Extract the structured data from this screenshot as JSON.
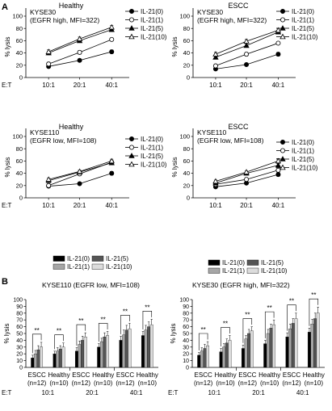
{
  "panel_labels": [
    "A",
    "B"
  ],
  "chart_data": [
    {
      "type": "line",
      "panel": "A",
      "title": "Healthy",
      "cell_line": "KYSE30",
      "subtitle": "(EGFR high, MFI=322)",
      "ylabel": "% lysis",
      "xaxis_prefix": "E:T",
      "categories": [
        "10:1",
        "20:1",
        "40:1"
      ],
      "ylim": [
        0,
        100
      ],
      "yticks": [
        0,
        20,
        40,
        60,
        80,
        100
      ],
      "series": [
        {
          "name": "IL-21(0)",
          "marker": "filled-circle",
          "values": [
            18,
            28,
            42
          ],
          "errors": [
            2,
            2,
            3
          ]
        },
        {
          "name": "IL-21(1)",
          "marker": "open-circle",
          "values": [
            22,
            41,
            62
          ],
          "errors": [
            3,
            3,
            2
          ]
        },
        {
          "name": "IL-21(5)",
          "marker": "filled-triangle",
          "values": [
            40,
            60,
            78
          ],
          "errors": [
            3,
            3,
            3
          ]
        },
        {
          "name": "IL-21(10)",
          "marker": "open-triangle",
          "values": [
            42,
            63,
            82
          ],
          "errors": [
            3,
            3,
            3
          ]
        }
      ]
    },
    {
      "type": "line",
      "panel": "A",
      "title": "ESCC",
      "cell_line": "KYSE30",
      "subtitle": "(EGFR high, MFI=322)",
      "ylabel": "% lysis",
      "xaxis_prefix": "",
      "categories": [
        "10:1",
        "20:1",
        "40:1"
      ],
      "ylim": [
        0,
        100
      ],
      "yticks": [
        0,
        20,
        40,
        60,
        80,
        100
      ],
      "series": [
        {
          "name": "IL-21(0)",
          "marker": "filled-circle",
          "values": [
            14,
            21,
            38
          ],
          "errors": [
            2,
            2,
            3
          ]
        },
        {
          "name": "IL-21(1)",
          "marker": "open-circle",
          "values": [
            19,
            38,
            56
          ],
          "errors": [
            3,
            3,
            2
          ]
        },
        {
          "name": "IL-21(5)",
          "marker": "filled-triangle",
          "values": [
            33,
            52,
            74
          ],
          "errors": [
            3,
            2,
            3
          ]
        },
        {
          "name": "IL-21(10)",
          "marker": "open-triangle",
          "values": [
            38,
            59,
            77
          ],
          "errors": [
            3,
            3,
            3
          ]
        }
      ]
    },
    {
      "type": "line",
      "panel": "A",
      "title": "Healthy",
      "cell_line": "KYSE110",
      "subtitle": "(EGFR low, MFI=108)",
      "ylabel": "% lysis",
      "xaxis_prefix": "E:T",
      "categories": [
        "10:1",
        "20:1",
        "40:1"
      ],
      "ylim": [
        0,
        100
      ],
      "yticks": [
        0,
        20,
        40,
        60,
        80,
        100
      ],
      "series": [
        {
          "name": "IL-21(0)",
          "marker": "filled-circle",
          "values": [
            19,
            23,
            40
          ],
          "errors": [
            2,
            2,
            3
          ]
        },
        {
          "name": "IL-21(1)",
          "marker": "open-circle",
          "values": [
            20,
            39,
            58
          ],
          "errors": [
            3,
            3,
            3
          ]
        },
        {
          "name": "IL-21(5)",
          "marker": "filled-triangle",
          "values": [
            28,
            42,
            57
          ],
          "errors": [
            2,
            2,
            3
          ]
        },
        {
          "name": "IL-21(10)",
          "marker": "open-triangle",
          "values": [
            30,
            43,
            60
          ],
          "errors": [
            2,
            2,
            3
          ]
        }
      ]
    },
    {
      "type": "line",
      "panel": "A",
      "title": "ESCC",
      "cell_line": "KYSE110",
      "subtitle": "(EGFR low, MFI=108)",
      "ylabel": "% lysis",
      "xaxis_prefix": "",
      "categories": [
        "10:1",
        "20:1",
        "40:1"
      ],
      "ylim": [
        0,
        100
      ],
      "yticks": [
        0,
        20,
        40,
        60,
        80,
        100
      ],
      "series": [
        {
          "name": "IL-21(0)",
          "marker": "filled-circle",
          "values": [
            18,
            24,
            38
          ],
          "errors": [
            2,
            2,
            3
          ]
        },
        {
          "name": "IL-21(1)",
          "marker": "open-circle",
          "values": [
            22,
            30,
            45
          ],
          "errors": [
            3,
            3,
            3
          ]
        },
        {
          "name": "IL-21(5)",
          "marker": "filled-triangle",
          "values": [
            24,
            40,
            53
          ],
          "errors": [
            2,
            2,
            3
          ]
        },
        {
          "name": "IL-21(10)",
          "marker": "open-triangle",
          "values": [
            27,
            42,
            60
          ],
          "errors": [
            2,
            2,
            4
          ]
        }
      ]
    },
    {
      "type": "bar",
      "panel": "B",
      "title": "KYSE110 (EGFR low, MFI=108)",
      "ylabel": "% lysis",
      "xaxis_prefix": "E:T",
      "ylim": [
        0,
        100
      ],
      "yticks": [
        0,
        10,
        20,
        30,
        40,
        50,
        60,
        70,
        80,
        90,
        100
      ],
      "et_ratios": [
        "10:1",
        "20:1",
        "40:1"
      ],
      "groups": [
        "ESCC",
        "Healthy"
      ],
      "group_n": [
        "(n=12)",
        "(n=10)"
      ],
      "significance": "**",
      "series_names": [
        "IL-21(0)",
        "IL-21(1)",
        "IL-21(5)",
        "IL-21(10)"
      ],
      "series_colors": [
        "#000000",
        "#a6a6a6",
        "#555555",
        "#dcdcdc"
      ],
      "values": [
        [
          [
            14,
            20,
            26,
            30
          ],
          [
            20,
            24,
            27,
            30
          ]
        ],
        [
          [
            24,
            34,
            40,
            45
          ],
          [
            30,
            38,
            45,
            47
          ]
        ],
        [
          [
            40,
            48,
            55,
            57
          ],
          [
            47,
            55,
            60,
            63
          ]
        ]
      ],
      "errors": [
        [
          [
            4,
            5,
            6,
            7
          ],
          [
            4,
            5,
            5,
            6
          ]
        ],
        [
          [
            5,
            5,
            6,
            6
          ],
          [
            5,
            5,
            6,
            6
          ]
        ],
        [
          [
            6,
            7,
            7,
            8
          ],
          [
            6,
            7,
            7,
            8
          ]
        ]
      ]
    },
    {
      "type": "bar",
      "panel": "B",
      "title": "KYSE30 (EGFR high, MFI=322)",
      "ylabel": "% lysis",
      "xaxis_prefix": "E:T",
      "ylim": [
        0,
        100
      ],
      "yticks": [
        0,
        10,
        20,
        30,
        40,
        50,
        60,
        70,
        80,
        90,
        100
      ],
      "et_ratios": [
        "10:1",
        "20:1",
        "40:1"
      ],
      "groups": [
        "ESCC",
        "Healthy"
      ],
      "group_n": [
        "(n=12)",
        "(n=10)"
      ],
      "significance": "**",
      "series_names": [
        "IL-21(0)",
        "IL-21(1)",
        "IL-21(5)",
        "IL-21(10)"
      ],
      "series_colors": [
        "#000000",
        "#a6a6a6",
        "#555555",
        "#dcdcdc"
      ],
      "values": [
        [
          [
            18,
            24,
            28,
            32
          ],
          [
            23,
            30,
            36,
            40
          ]
        ],
        [
          [
            28,
            42,
            50,
            54
          ],
          [
            35,
            50,
            58,
            63
          ]
        ],
        [
          [
            45,
            57,
            65,
            72
          ],
          [
            52,
            64,
            72,
            80
          ]
        ]
      ],
      "errors": [
        [
          [
            4,
            5,
            6,
            6
          ],
          [
            5,
            5,
            6,
            7
          ]
        ],
        [
          [
            5,
            5,
            6,
            6
          ],
          [
            5,
            6,
            6,
            7
          ]
        ],
        [
          [
            6,
            7,
            7,
            8
          ],
          [
            6,
            7,
            8,
            9
          ]
        ]
      ]
    }
  ]
}
